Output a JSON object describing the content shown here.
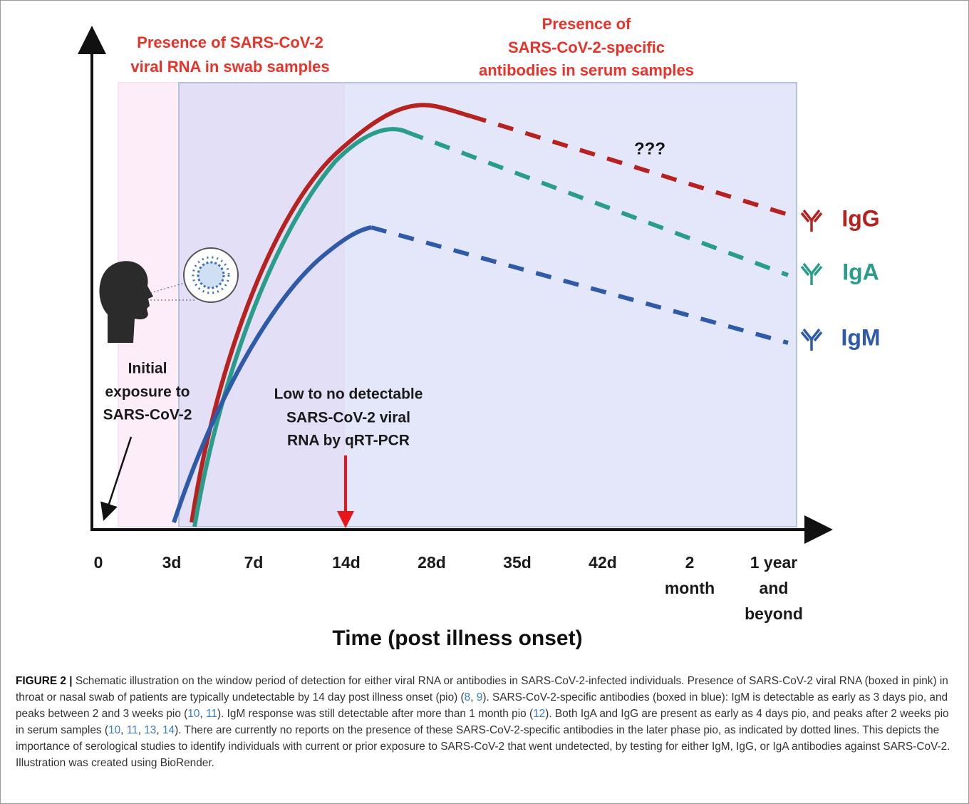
{
  "figure": {
    "left_heading": [
      "Presence of SARS-CoV-2",
      "viral RNA in swab samples"
    ],
    "right_heading": [
      "Presence of",
      "SARS-CoV-2-specific",
      "antibodies in serum samples"
    ],
    "unknown_mark": "???",
    "antibodies": [
      "IgG",
      "IgA",
      "IgM"
    ],
    "exposure_note": [
      "Initial",
      "exposure to",
      "SARS-CoV-2"
    ],
    "detection_note": [
      "Low to no detectable",
      "SARS-CoV-2 viral",
      "RNA by qRT-PCR"
    ],
    "x_ticks": [
      [
        "0"
      ],
      [
        "3d"
      ],
      [
        "7d"
      ],
      [
        "14d"
      ],
      [
        "28d"
      ],
      [
        "35d"
      ],
      [
        "42d"
      ],
      [
        "2",
        "month"
      ],
      [
        "1 year",
        "and",
        "beyond"
      ]
    ],
    "x_axis_title": "Time (post illness onset)"
  },
  "caption": {
    "label": "FIGURE 2 |",
    "segments": [
      " Schematic illustration on the window period of detection for either viral RNA or antibodies in SARS-CoV-2-infected individuals. Presence of SARS-CoV-2 viral RNA (boxed in pink) in throat or nasal swab of patients are typically undetectable by 14 day post illness onset (pio) (",
      {
        "ref": "8"
      },
      ", ",
      {
        "ref": "9"
      },
      "). SARS-CoV-2-specific antibodies (boxed in blue): IgM is detectable as early as 3 days pio, and peaks between 2 and 3 weeks pio (",
      {
        "ref": "10"
      },
      ", ",
      {
        "ref": "11"
      },
      "). IgM response was still detectable after more than 1 month pio (",
      {
        "ref": "12"
      },
      "). Both IgA and IgG are present as early as 4 days pio, and peaks after 2 weeks pio in serum samples (",
      {
        "ref": "10"
      },
      ", ",
      {
        "ref": "11"
      },
      ", ",
      {
        "ref": "13"
      },
      ", ",
      {
        "ref": "14"
      },
      "). There are currently no reports on the presence of these SARS-CoV-2-specific antibodies in the later phase pio, as indicated by dotted lines. This depicts the importance of serological studies to identify individuals with current or prior exposure to SARS-CoV-2 that went undetected, by testing for either IgM, IgG, or IgA antibodies against SARS-CoV-2. Illustration was created using BioRender."
    ]
  }
}
